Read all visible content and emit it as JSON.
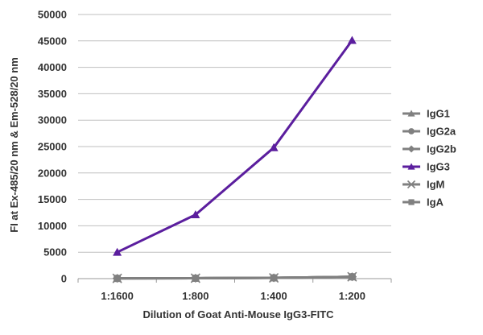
{
  "chart_data": {
    "type": "line",
    "title": "",
    "xlabel": "Dilution of Goat Anti-Mouse IgG3-FITC",
    "ylabel": "FI at Ex-485/20 nm & Em-528/20 nm",
    "categories": [
      "1:1600",
      "1:800",
      "1:400",
      "1:200"
    ],
    "ylim": [
      0,
      50000
    ],
    "yticks": [
      0,
      5000,
      10000,
      15000,
      20000,
      25000,
      30000,
      35000,
      40000,
      45000,
      50000
    ],
    "ytick_labels": [
      "0",
      "5000",
      "10000",
      "15000",
      "20000",
      "25000",
      "30000",
      "35000",
      "40000",
      "45000",
      "50000"
    ],
    "grid": "horizontal",
    "legend_position": "right",
    "series": [
      {
        "name": "IgG1",
        "values": [
          50,
          80,
          150,
          350
        ],
        "color": "#808080",
        "marker": "triangle"
      },
      {
        "name": "IgG2a",
        "values": [
          50,
          80,
          150,
          350
        ],
        "color": "#808080",
        "marker": "circle"
      },
      {
        "name": "IgG2b",
        "values": [
          50,
          80,
          150,
          350
        ],
        "color": "#808080",
        "marker": "diamond"
      },
      {
        "name": "IgG3",
        "values": [
          5000,
          12100,
          24800,
          45100
        ],
        "color": "#5b1e9e",
        "marker": "triangle"
      },
      {
        "name": "IgM",
        "values": [
          50,
          80,
          150,
          350
        ],
        "color": "#808080",
        "marker": "star"
      },
      {
        "name": "IgA",
        "values": [
          50,
          80,
          150,
          350
        ],
        "color": "#808080",
        "marker": "square"
      }
    ]
  }
}
